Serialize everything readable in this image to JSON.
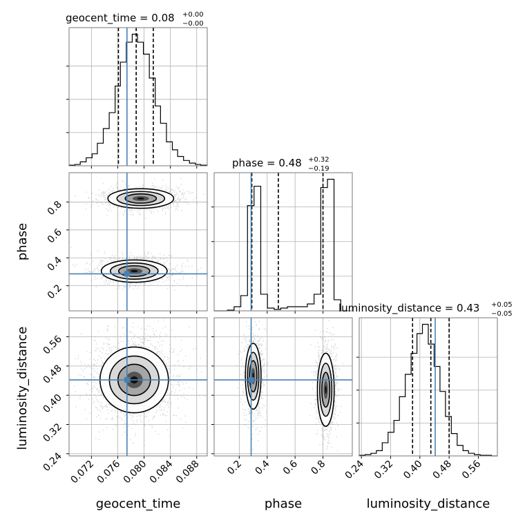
{
  "chart_data": {
    "type": "corner",
    "parameters": [
      "geocent_time",
      "phase",
      "luminosity_distance"
    ],
    "truths": {
      "geocent_time": 0.0774,
      "phase": 0.285,
      "luminosity_distance": 0.442
    },
    "colors": {
      "truth": "#4682b4",
      "hist": "#000000",
      "grid": "#b0b0b0"
    },
    "titles": [
      {
        "param": "geocent_time",
        "text": "geocent_time = 0.08",
        "sup": "+0.00",
        "sub": "−0.00"
      },
      {
        "param": "phase",
        "text": "phase = 0.48",
        "sup": "+0.32",
        "sub": "−0.19"
      },
      {
        "param": "luminosity_distance",
        "text": "luminosity_distance = 0.43",
        "sup": "+0.05",
        "sub": "−0.05"
      }
    ],
    "axes": {
      "geocent_time": {
        "range": [
          0.0686,
          0.0896
        ],
        "ticks": [
          0.072,
          0.076,
          0.08,
          0.084,
          0.088
        ],
        "tick_labels": [
          "0.072",
          "0.076",
          "0.080",
          "0.084",
          "0.088"
        ],
        "label": "geocent_time"
      },
      "phase": {
        "range": [
          0.02,
          1.01
        ],
        "ticks": [
          0.2,
          0.4,
          0.6,
          0.8
        ],
        "tick_labels": [
          "0.2",
          "0.4",
          "0.6",
          "0.8"
        ],
        "label": "phase"
      },
      "luminosity_distance": {
        "range": [
          0.234,
          0.612
        ],
        "ticks": [
          0.24,
          0.32,
          0.4,
          0.48,
          0.56
        ],
        "tick_labels": [
          "0.24",
          "0.32",
          "0.40",
          "0.48",
          "0.56"
        ],
        "label": "luminosity_distance"
      }
    },
    "histograms": {
      "geocent_time": {
        "edges": [
          0.0686,
          0.0695,
          0.0703,
          0.0712,
          0.0721,
          0.0729,
          0.0738,
          0.0747,
          0.0756,
          0.0764,
          0.0773,
          0.0782,
          0.079,
          0.0799,
          0.0808,
          0.0817,
          0.0825,
          0.0834,
          0.0843,
          0.0851,
          0.086,
          0.0869,
          0.0878,
          0.0886,
          0.0895
        ],
        "counts": [
          0.5,
          1,
          3,
          6,
          9,
          17,
          28,
          40,
          60,
          78,
          93,
          99,
          93,
          84,
          66,
          45,
          32,
          18,
          12,
          7,
          4,
          2,
          1,
          0.5
        ],
        "quantiles": [
          0.0761,
          0.0788,
          0.0814
        ]
      },
      "phase": {
        "edges": [
          0.02,
          0.068,
          0.115,
          0.163,
          0.211,
          0.259,
          0.306,
          0.354,
          0.402,
          0.45,
          0.497,
          0.545,
          0.593,
          0.641,
          0.688,
          0.736,
          0.784,
          0.832,
          0.879,
          0.927,
          0.975
        ],
        "counts": [
          0,
          0,
          0.5,
          3,
          11,
          76,
          90,
          12,
          2,
          1,
          2,
          3,
          3,
          3,
          5,
          12,
          89,
          95,
          8,
          0
        ],
        "quantiles": [
          0.29,
          0.48,
          0.8
        ]
      },
      "luminosity_distance": {
        "edges": [
          0.234,
          0.25,
          0.266,
          0.281,
          0.297,
          0.313,
          0.329,
          0.344,
          0.36,
          0.376,
          0.392,
          0.407,
          0.423,
          0.439,
          0.455,
          0.47,
          0.486,
          0.502,
          0.518,
          0.533,
          0.549,
          0.565,
          0.581,
          0.596,
          0.612
        ],
        "counts": [
          0.5,
          1,
          2,
          4,
          10,
          18,
          27,
          45,
          62,
          78,
          93,
          100,
          85,
          68,
          49,
          30,
          17,
          8,
          4,
          2,
          1,
          0.5,
          0.5,
          0
        ],
        "quantiles": [
          0.38,
          0.43,
          0.48
        ]
      }
    },
    "joint": [
      {
        "x": "geocent_time",
        "y": "phase",
        "modes": [
          {
            "cx": 0.0795,
            "cy": 0.825,
            "sx": 0.0025,
            "sy": 0.035,
            "w": 0.5
          },
          {
            "cx": 0.0785,
            "cy": 0.305,
            "sx": 0.0025,
            "sy": 0.04,
            "w": 0.5
          }
        ]
      },
      {
        "x": "geocent_time",
        "y": "luminosity_distance",
        "modes": [
          {
            "cx": 0.0785,
            "cy": 0.442,
            "sx": 0.0026,
            "sy": 0.045,
            "w": 1
          }
        ]
      },
      {
        "x": "phase",
        "y": "luminosity_distance",
        "modes": [
          {
            "cx": 0.3,
            "cy": 0.452,
            "sx": 0.028,
            "sy": 0.045,
            "w": 0.5
          },
          {
            "cx": 0.82,
            "cy": 0.415,
            "sx": 0.03,
            "sy": 0.05,
            "w": 0.5
          }
        ]
      }
    ],
    "grid": true
  }
}
